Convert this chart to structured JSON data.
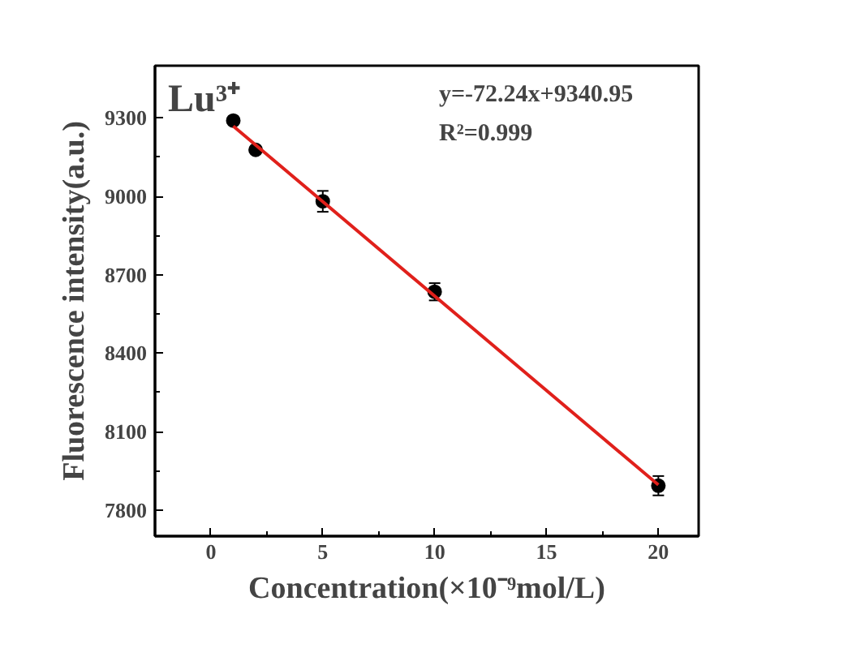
{
  "chart_data": {
    "type": "scatter",
    "xlabel": "Concentration(×10⁻⁹mol/L)",
    "ylabel": "Fluorescence intensity(a.u.)",
    "annotations": [
      "Lu³⁺",
      "y=-72.24x+9340.95",
      "R²=0.999"
    ],
    "xlim": [
      -2.5,
      21.8
    ],
    "xticks": [
      0,
      5,
      10,
      15,
      20
    ],
    "ylim": [
      7700,
      9500
    ],
    "yticks": [
      7800,
      8100,
      8400,
      8700,
      9000,
      9300
    ],
    "grid": false,
    "series": [
      {
        "color": "#000000",
        "marker": "circle",
        "x": [
          1,
          2,
          5,
          10,
          20
        ],
        "values": [
          9290,
          9178,
          8981,
          8635,
          7893
        ],
        "errors": [
          10,
          10,
          40,
          33,
          37
        ]
      },
      {
        "type": "line",
        "color": "#e0201b",
        "x": [
          1,
          20
        ],
        "values": [
          9269,
          7896
        ],
        "marker": "none",
        "line_style": "solid"
      }
    ]
  }
}
